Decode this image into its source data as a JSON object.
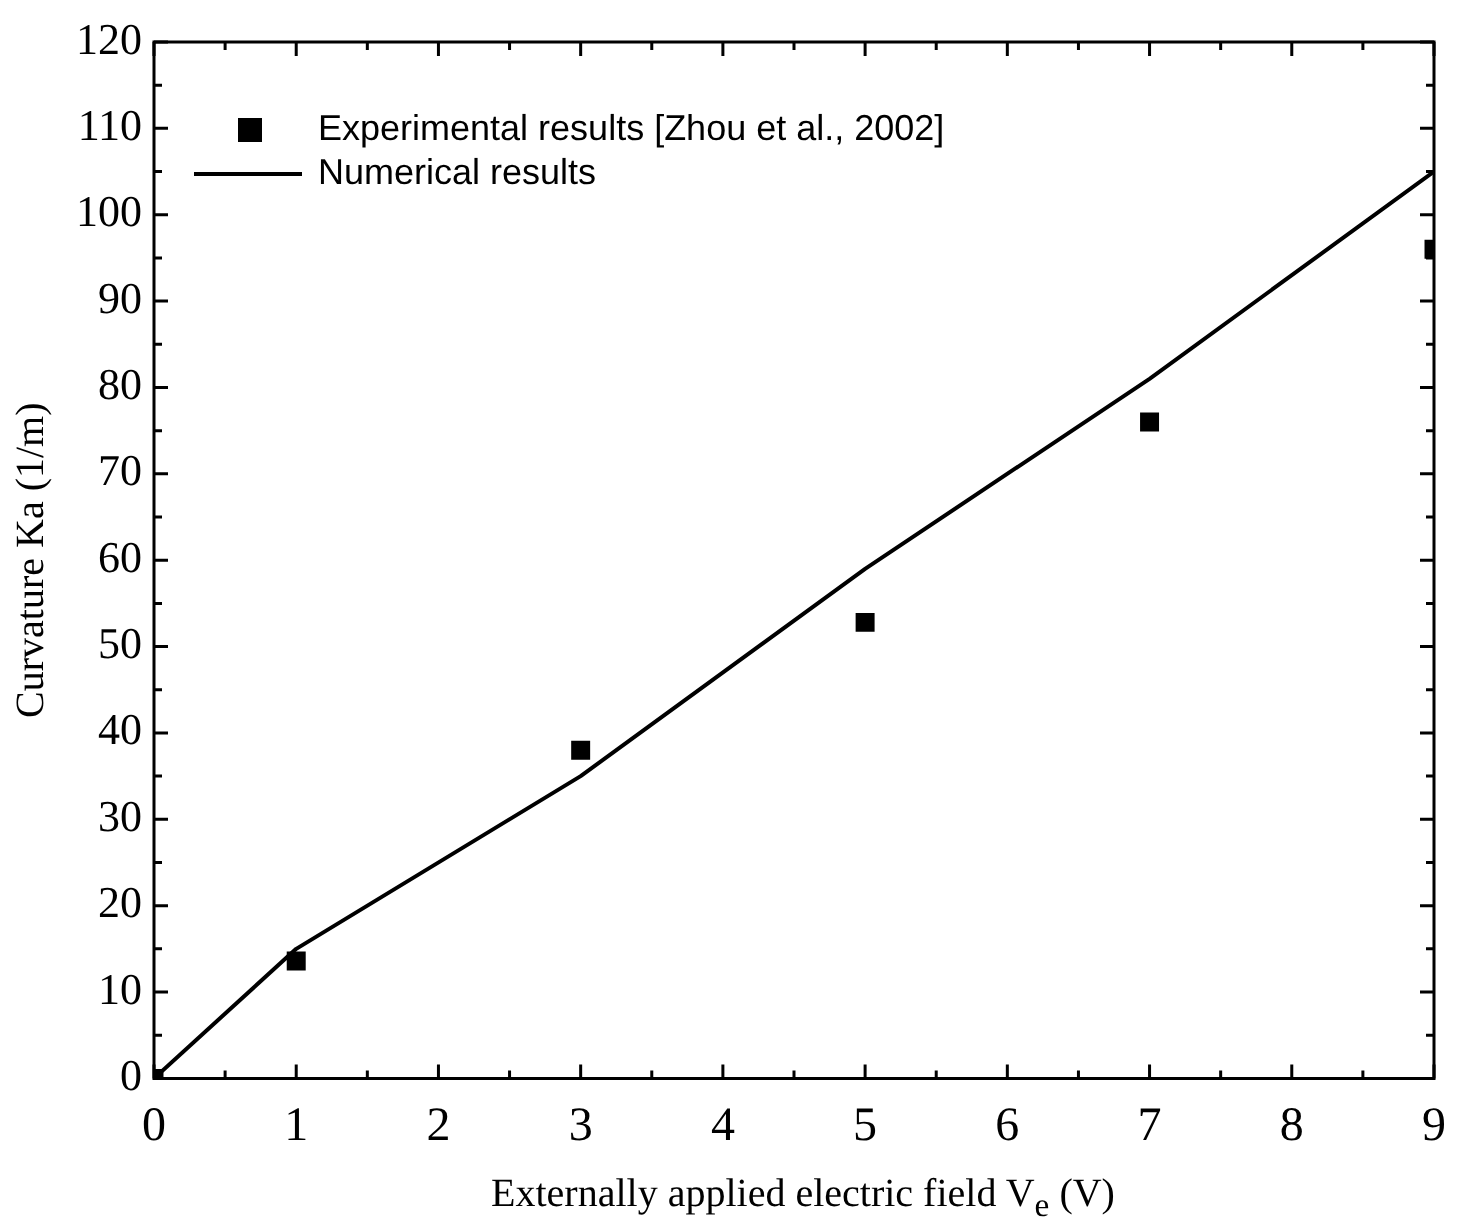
{
  "chart_data": {
    "type": "scatter",
    "xlabel": "Externally applied electric field V$_{e}$ (V)",
    "ylabel": "Curvature Ka (1/m)",
    "xlim": [
      0,
      9
    ],
    "ylim": [
      0,
      120
    ],
    "xticks": [
      0,
      {
        "value": 0.5,
        "label": null
      },
      1,
      {
        "value": 1.5,
        "label": null
      },
      2,
      {
        "value": 2.5,
        "label": null
      },
      3,
      {
        "value": 3.5,
        "label": null
      },
      4,
      {
        "value": 4.5,
        "label": null
      },
      5,
      {
        "value": 5.5,
        "label": null
      },
      6,
      {
        "value": 6.5,
        "label": null
      },
      7,
      {
        "value": 7.5,
        "label": null
      },
      8,
      {
        "value": 8.5,
        "label": null
      },
      9
    ],
    "yticks": [
      0,
      {
        "value": 5,
        "label": null
      },
      10,
      {
        "value": 15,
        "label": null
      },
      20,
      {
        "value": 25,
        "label": null
      },
      30,
      {
        "value": 35,
        "label": null
      },
      40,
      {
        "value": 45,
        "label": null
      },
      50,
      {
        "value": 55,
        "label": null
      },
      60,
      {
        "value": 65,
        "label": null
      },
      70,
      {
        "value": 75,
        "label": null
      },
      80,
      {
        "value": 85,
        "label": null
      },
      90,
      {
        "value": 95,
        "label": null
      },
      100,
      {
        "value": 105,
        "label": null
      },
      110,
      {
        "value": 115,
        "label": null
      },
      120
    ],
    "grid": false,
    "legend": "top left",
    "series": [
      {
        "name": "Experimental results [Zhou et al., 2002]",
        "marker": "square",
        "color": "#000000",
        "x": [
          0,
          1,
          3,
          5,
          7,
          9
        ],
        "values": [
          0,
          13.6,
          38,
          52.8,
          76,
          96
        ]
      },
      {
        "name": "Numerical results",
        "type": "line",
        "marker": "none",
        "line_style": "solid",
        "color": "#000000",
        "x": [
          0,
          1,
          3,
          5,
          7,
          9
        ],
        "values": [
          0,
          15,
          35,
          59,
          81,
          105
        ]
      }
    ]
  }
}
